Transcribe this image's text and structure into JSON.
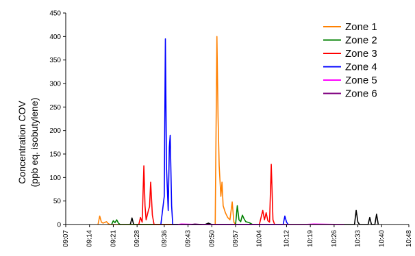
{
  "chart_data": {
    "type": "line",
    "title": "",
    "xlabel": "",
    "ylabel_line1": "Concentration COV",
    "ylabel_line2": "(ppb eq. isobutylene)",
    "ylim": [
      0,
      450
    ],
    "yticks": [
      "0",
      "50",
      "100",
      "150",
      "200",
      "250",
      "300",
      "350",
      "400",
      "450"
    ],
    "xlim": [
      "09:07",
      "10:48"
    ],
    "xticks": [
      "09:07",
      "09:14",
      "09:21",
      "09:28",
      "09:36",
      "09:43",
      "09:50",
      "09:57",
      "10:04",
      "10:12",
      "10:19",
      "10:26",
      "10:33",
      "10:40",
      "10:48"
    ],
    "grid": false,
    "legend_position": "top-right",
    "colors": {
      "Zone 1": "#ff8000",
      "Zone 2": "#008000",
      "Zone 3": "#ff0000",
      "Zone 4": "#0000ff",
      "Zone 5": "#ff00ff",
      "Zone 6": "#800080",
      "other": "#000000"
    },
    "series": [
      {
        "name": "Zone 1",
        "points": [
          [
            "09:16:30",
            0
          ],
          [
            "09:17:00",
            18
          ],
          [
            "09:17:30",
            5
          ],
          [
            "09:18:00",
            3
          ],
          [
            "09:19:00",
            6
          ],
          [
            "09:19:30",
            2
          ],
          [
            "09:20:00",
            0
          ],
          [
            "09:51:00",
            0
          ],
          [
            "09:51:30",
            400
          ],
          [
            "09:51:50",
            230
          ],
          [
            "09:52:10",
            125
          ],
          [
            "09:52:40",
            60
          ],
          [
            "09:53:00",
            90
          ],
          [
            "09:53:20",
            40
          ],
          [
            "09:54:00",
            25
          ],
          [
            "09:54:40",
            15
          ],
          [
            "09:55:20",
            10
          ],
          [
            "09:56:00",
            48
          ],
          [
            "09:56:30",
            5
          ],
          [
            "09:57:00",
            0
          ]
        ]
      },
      {
        "name": "Zone 2",
        "points": [
          [
            "09:20:30",
            0
          ],
          [
            "09:21:00",
            8
          ],
          [
            "09:21:30",
            4
          ],
          [
            "09:22:00",
            10
          ],
          [
            "09:22:30",
            3
          ],
          [
            "09:23:00",
            0
          ],
          [
            "09:57:00",
            0
          ],
          [
            "09:57:30",
            40
          ],
          [
            "09:58:00",
            10
          ],
          [
            "09:58:30",
            6
          ],
          [
            "09:59:00",
            20
          ],
          [
            "09:59:30",
            12
          ],
          [
            "10:00:00",
            6
          ],
          [
            "10:01:00",
            4
          ],
          [
            "10:02:00",
            0
          ]
        ]
      },
      {
        "name": "Zone 3",
        "points": [
          [
            "09:28:30",
            0
          ],
          [
            "09:29:00",
            15
          ],
          [
            "09:29:30",
            5
          ],
          [
            "09:30:00",
            125
          ],
          [
            "09:30:20",
            40
          ],
          [
            "09:30:40",
            10
          ],
          [
            "09:31:20",
            30
          ],
          [
            "09:31:40",
            38
          ],
          [
            "09:32:00",
            90
          ],
          [
            "09:32:30",
            20
          ],
          [
            "09:33:00",
            0
          ],
          [
            "10:04:00",
            0
          ],
          [
            "10:04:30",
            15
          ],
          [
            "10:05:00",
            30
          ],
          [
            "10:05:30",
            10
          ],
          [
            "10:06:00",
            25
          ],
          [
            "10:06:30",
            8
          ],
          [
            "10:07:00",
            5
          ],
          [
            "10:07:30",
            128
          ],
          [
            "10:08:00",
            10
          ],
          [
            "10:08:30",
            0
          ]
        ]
      },
      {
        "name": "Zone 4",
        "points": [
          [
            "09:35:00",
            0
          ],
          [
            "09:36:00",
            60
          ],
          [
            "09:36:20",
            395
          ],
          [
            "09:36:40",
            120
          ],
          [
            "09:37:10",
            30
          ],
          [
            "09:37:30",
            165
          ],
          [
            "09:37:45",
            190
          ],
          [
            "09:38:10",
            40
          ],
          [
            "09:38:30",
            0
          ],
          [
            "10:11:00",
            0
          ],
          [
            "10:11:30",
            18
          ],
          [
            "10:12:00",
            5
          ],
          [
            "10:12:30",
            0
          ]
        ]
      },
      {
        "name": "Zone 5",
        "points": [
          [
            "09:40:00",
            0
          ],
          [
            "09:41:00",
            1
          ],
          [
            "09:47:00",
            0
          ],
          [
            "09:49:00",
            0
          ],
          [
            "10:17:00",
            0
          ],
          [
            "10:20:00",
            1
          ],
          [
            "10:29:00",
            0
          ]
        ]
      },
      {
        "name": "Zone 6",
        "points": [
          [
            "09:44:00",
            0
          ],
          [
            "09:45:00",
            1
          ],
          [
            "09:47:00",
            0
          ]
        ]
      }
    ],
    "unlabeled_series": [
      {
        "color": "#000000",
        "points": [
          [
            "09:26:00",
            0
          ],
          [
            "09:26:30",
            14
          ],
          [
            "09:27:00",
            0
          ],
          [
            "09:48:00",
            0
          ],
          [
            "09:49:00",
            3
          ],
          [
            "09:50:00",
            0
          ],
          [
            "10:32:00",
            0
          ],
          [
            "10:32:30",
            30
          ],
          [
            "10:33:00",
            5
          ],
          [
            "10:33:30",
            0
          ],
          [
            "10:36:00",
            0
          ],
          [
            "10:36:30",
            15
          ],
          [
            "10:37:00",
            0
          ],
          [
            "10:38:00",
            0
          ],
          [
            "10:38:30",
            22
          ],
          [
            "10:39:00",
            0
          ]
        ]
      }
    ]
  }
}
